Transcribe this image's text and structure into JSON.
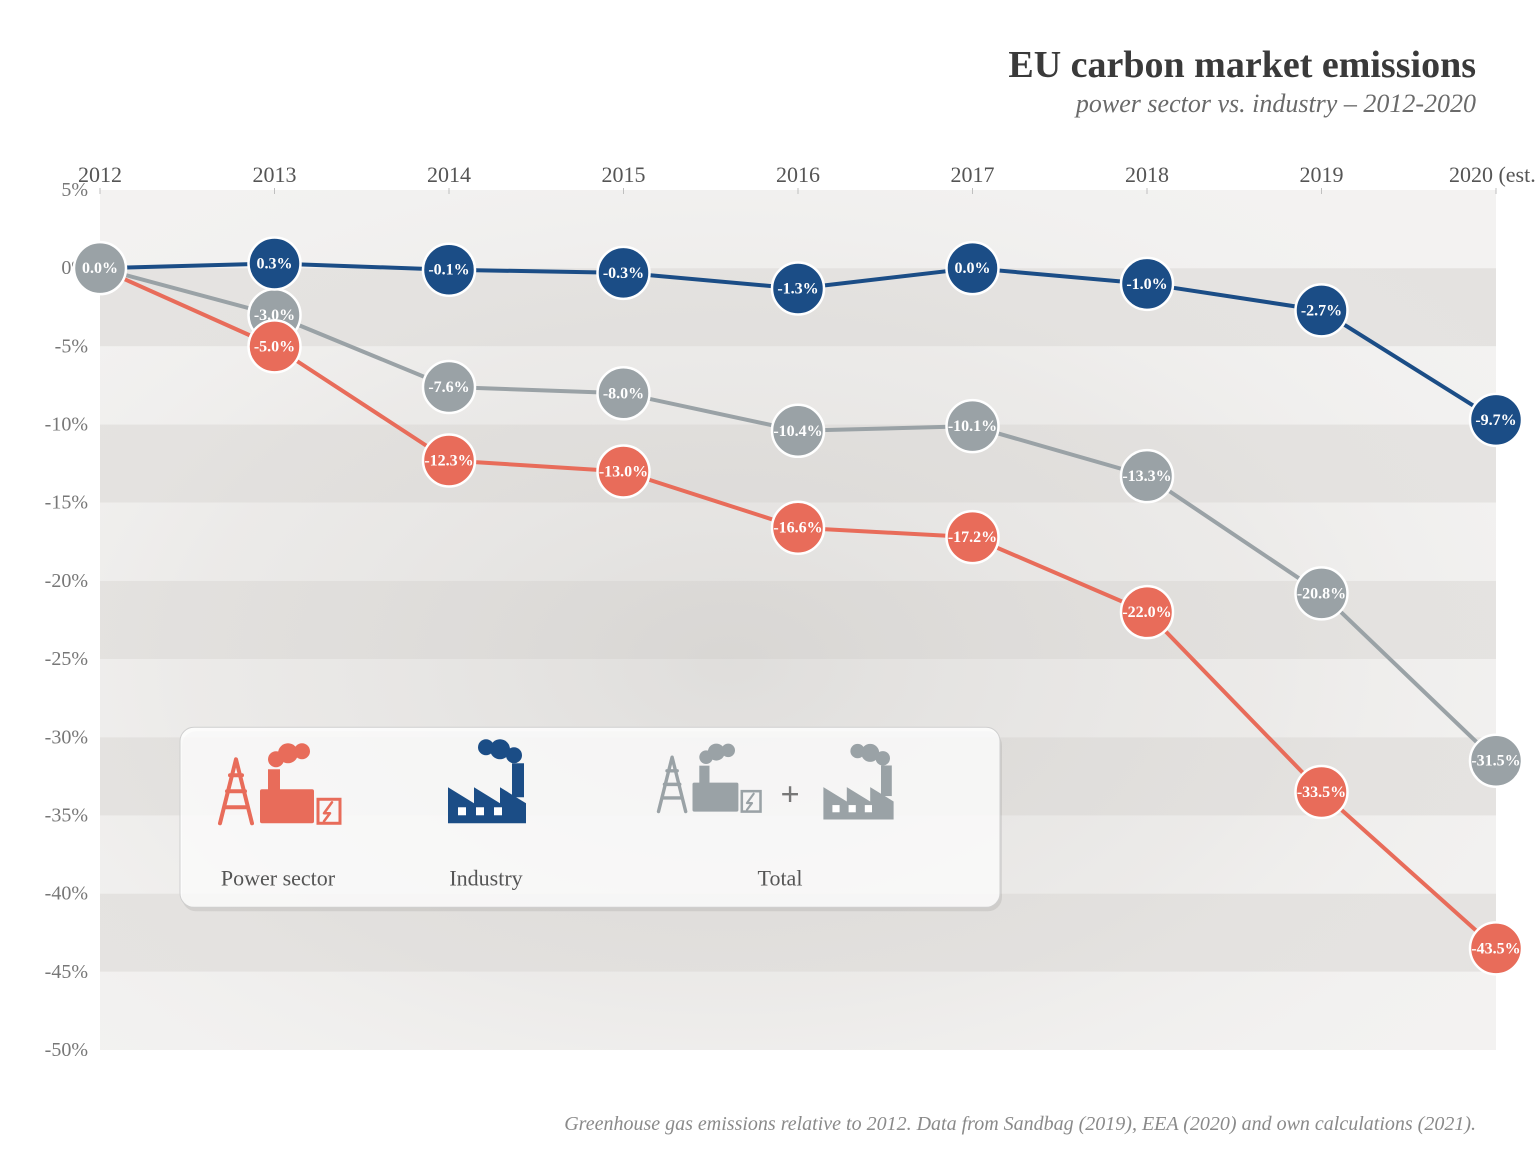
{
  "title": "EU carbon market emissions",
  "subtitle": "power sector vs. industry – 2012-2020",
  "footnote": "Greenhouse gas emissions relative to 2012. Data from Sandbag (2019), EEA (2020) and own calculations (2021).",
  "chart": {
    "type": "line",
    "background_color": "#ffffff",
    "band_colors": {
      "light": "#f3f2f1",
      "dark": "#e4e2e0",
      "cloudy_tint": "#d7d5d2"
    },
    "x_categories": [
      "2012",
      "2013",
      "2014",
      "2015",
      "2016",
      "2017",
      "2018",
      "2019",
      "2020 (est.)"
    ],
    "ylim": [
      -50,
      5
    ],
    "ytick_step": 5,
    "ytick_suffix": "%",
    "line_width": 4,
    "marker_radius": 26,
    "label_fontsize": 16,
    "axis_fontsize_x": 22,
    "axis_fontsize_y": 20,
    "series": [
      {
        "id": "industry",
        "name": "Industry",
        "color": "#1b4d86",
        "values": [
          0.0,
          0.3,
          -0.1,
          -0.3,
          -1.3,
          0.0,
          -1.0,
          -2.7,
          -9.7
        ],
        "label_first": false
      },
      {
        "id": "total",
        "name": "Total",
        "color": "#9aa2a6",
        "values": [
          0.0,
          -3.0,
          -7.6,
          -8.0,
          -10.4,
          -10.1,
          -13.3,
          -20.8,
          -31.5
        ],
        "label_first": true
      },
      {
        "id": "power",
        "name": "Power sector",
        "color": "#e86c5a",
        "values": [
          0.0,
          -5.0,
          -12.3,
          -13.0,
          -16.6,
          -17.2,
          -22.0,
          -33.5,
          -43.5
        ],
        "label_first": false
      }
    ],
    "legend": {
      "order": [
        "power",
        "industry",
        "total"
      ],
      "labels": {
        "power": "Power sector",
        "industry": "Industry",
        "total": "Total"
      }
    }
  }
}
